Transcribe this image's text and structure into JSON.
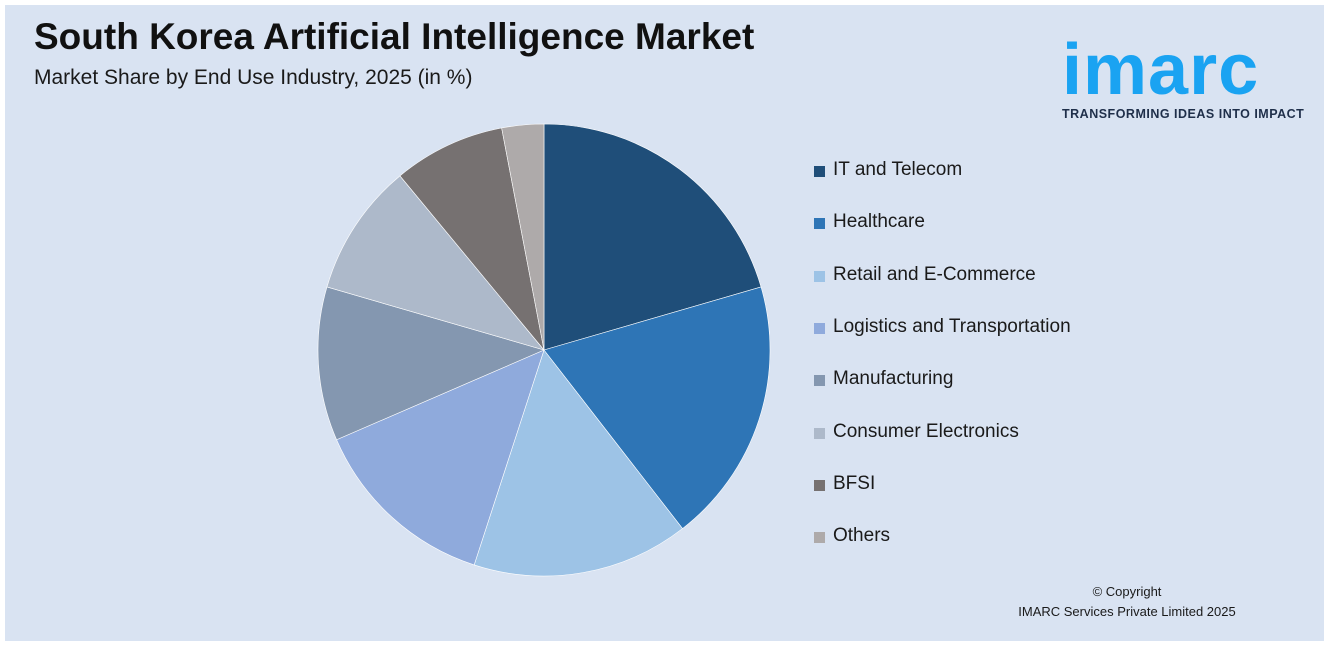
{
  "title": "South Korea Artificial Intelligence Market",
  "subtitle": "Market Share by End Use Industry, 2025 (in %)",
  "logo": {
    "wordmark": "imarc",
    "tagline": "TRANSFORMING IDEAS INTO IMPACT",
    "color": "#1aa3f2"
  },
  "copyright": {
    "line1": "© Copyright",
    "line2": "IMARC Services Private Limited 2025"
  },
  "chart_data": {
    "type": "pie",
    "title": "South Korea Artificial Intelligence Market",
    "subtitle": "Market Share by End Use Industry, 2025 (in %)",
    "legend_position": "right",
    "start_angle": "12 o'clock, clockwise",
    "categories": [
      "IT and Telecom",
      "Healthcare",
      "Retail and E-Commerce",
      "Logistics and Transportation",
      "Manufacturing",
      "Consumer Electronics",
      "BFSI",
      "Others"
    ],
    "values": [
      20.5,
      19.0,
      15.5,
      13.5,
      11.0,
      9.5,
      8.0,
      3.0
    ],
    "colors": [
      "#1f4e79",
      "#2e75b6",
      "#9dc3e6",
      "#8faadc",
      "#8497b0",
      "#adb9ca",
      "#767171",
      "#aeaaaa"
    ]
  }
}
